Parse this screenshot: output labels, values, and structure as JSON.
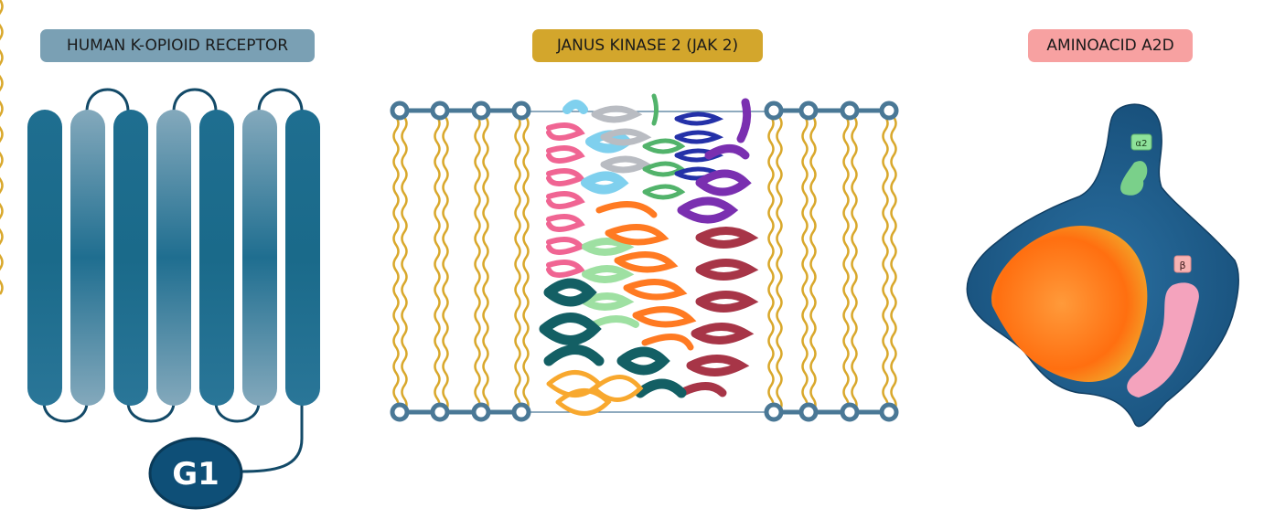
{
  "panels": [
    {
      "title": "HUMAN K-OPIOID RECEPTOR",
      "color": "#7aa0b4",
      "badge": "G1"
    },
    {
      "title": "JANUS KINASE 2 (JAK 2)",
      "color": "#d3a62c"
    },
    {
      "title": "AMINOACID A2D",
      "color": "#f7a1a1",
      "labels": [
        "α2",
        "β"
      ]
    }
  ],
  "colors": {
    "receptor_dark": "#1b6a8c",
    "receptor_light": "#7ea2b6",
    "membrane_bar": "#4a7896",
    "lipid_wave": "#d9a82c",
    "blob": "#1b5f8e",
    "core": "#ff7a1c"
  }
}
